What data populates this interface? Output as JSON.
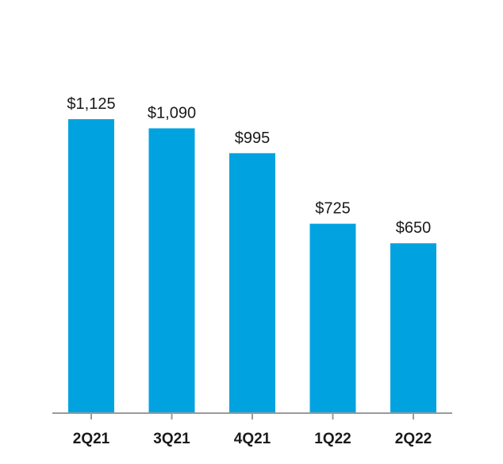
{
  "colors": {
    "bar": "#00a3e0",
    "axis": "#9a9a9a",
    "text": "#1a1a1a"
  },
  "chart_data": {
    "type": "bar",
    "categories": [
      "2Q21",
      "3Q21",
      "4Q21",
      "1Q22",
      "2Q22"
    ],
    "values": [
      1125,
      1090,
      995,
      725,
      650
    ],
    "data_labels": [
      "$1,125",
      "$1,090",
      "$995",
      "$725",
      "$650"
    ],
    "title": "",
    "xlabel": "",
    "ylabel": "",
    "ylim": [
      0,
      1250
    ],
    "grid": false,
    "legend": "none"
  }
}
